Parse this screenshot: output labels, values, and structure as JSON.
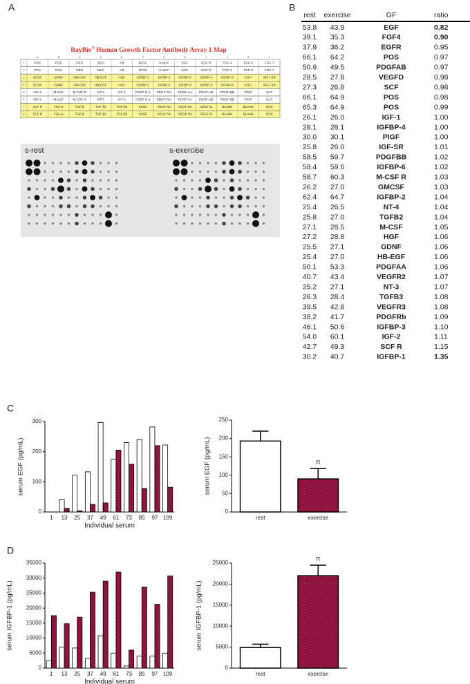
{
  "panels": [
    "A",
    "B",
    "C",
    "D"
  ],
  "array_map": {
    "title": [
      "RayBio",
      "®",
      " Human Growth Factor Antibody Array 1 Map"
    ],
    "columns": [
      "A",
      "B",
      "C",
      "D",
      "E",
      "F",
      "G",
      "H",
      "I",
      "J",
      "K",
      "L"
    ],
    "row_labels": [
      "1",
      "2",
      "3",
      "4",
      "5",
      "6",
      "7",
      "8"
    ],
    "rows": [
      [
        "POS",
        "POS",
        "NEG",
        "NEG",
        "AR",
        "bFGF",
        "b-NGF",
        "EGF",
        "EGF R",
        "FGF-4",
        "FGF-6",
        "FGF-7"
      ],
      [
        "POS",
        "POS",
        "NEG",
        "NEG",
        "AR",
        "bFGF",
        "b-NGF",
        "EGF",
        "EGF R",
        "FGF-4",
        "FGF-6",
        "FGF-7"
      ],
      [
        "GCSF",
        "GDNF",
        "GM-CSF",
        "HB-EGF",
        "HGF",
        "IGFBP-1",
        "IGFBP-2",
        "IGFBP-3",
        "IGFBP-4",
        "IGFBP-6",
        "IGF-I",
        "IGF-I SR"
      ],
      [
        "GCSF",
        "GDNF",
        "GM-CSF",
        "HB-EGF",
        "HGF",
        "IGFBP-1",
        "IGFBP-2",
        "IGFBP-3",
        "IGFBP-4",
        "IGFBP-6",
        "IGF-I",
        "IGF-I SR"
      ],
      [
        "IGF-II",
        "M-CSF",
        "M-CSF R",
        "NT-3",
        "NT-4",
        "PDGF R a",
        "PDGF R b",
        "PDGF-AA",
        "PDGF-AB",
        "PDGF-BB",
        "PIGF",
        "SCF"
      ],
      [
        "IGF-II",
        "M-CSF",
        "M-CSF R",
        "NT-3",
        "NT-4",
        "PDGF R a",
        "PDGF R b",
        "PDGF-AA",
        "PDGF-AB",
        "PDGF-BB",
        "PIGF",
        "SCF"
      ],
      [
        "SCF R",
        "TGF-α",
        "TGF-β",
        "TGF-β2",
        "TGF-β3",
        "VEGF",
        "VEGF R2",
        "VEGF R3",
        "VEGF-D",
        "BLANK",
        "BLANK",
        "POS"
      ],
      [
        "SCF R",
        "TGF-α",
        "TGF-β",
        "TGF-β2",
        "TGF-β3",
        "VEGF",
        "VEGF R2",
        "VEGF R3",
        "VEGF-D",
        "BLANK",
        "BLANK",
        "POS"
      ]
    ]
  },
  "blots": [
    "s-rest",
    "s-exercise"
  ],
  "table": {
    "columns": [
      "rest",
      "exercise",
      "GF",
      "ratio"
    ],
    "rows": [
      [
        "53.8",
        "43.9",
        "EGF",
        "0.82"
      ],
      [
        "39.1",
        "35.3",
        "FGF4",
        "0.90"
      ],
      [
        "37.9",
        "36.2",
        "EGFR",
        "0.95"
      ],
      [
        "66.1",
        "64.2",
        "POS",
        "0.97"
      ],
      [
        "50.9",
        "49.5",
        "PDGFAB",
        "0.97"
      ],
      [
        "28.5",
        "27.8",
        "VEGFD",
        "0.98"
      ],
      [
        "27.3",
        "26.8",
        "SCF",
        "0.98"
      ],
      [
        "66.1",
        "64.9",
        "POS",
        "0.98"
      ],
      [
        "65.3",
        "64.9",
        "POS",
        "0.99"
      ],
      [
        "26.1",
        "26.0",
        "IGF-1",
        "1.00"
      ],
      [
        "28.1",
        "28.1",
        "IGFBP-4",
        "1.00"
      ],
      [
        "30.0",
        "30.1",
        "PIGF",
        "1.00"
      ],
      [
        "25.8",
        "26.0",
        "IGF-SR",
        "1.01"
      ],
      [
        "58.5",
        "59.7",
        "PDGFBB",
        "1.02"
      ],
      [
        "58.4",
        "59.6",
        "IGFBP-6",
        "1.02"
      ],
      [
        "58.7",
        "60.3",
        "M-CSF R",
        "1.03"
      ],
      [
        "26.2",
        "27.0",
        "GMCSF",
        "1.03"
      ],
      [
        "62.4",
        "64.7",
        "IGFBP-2",
        "1.04"
      ],
      [
        "25.4",
        "26.5",
        "NT-4",
        "1.04"
      ],
      [
        "25.8",
        "27.0",
        "TGFB2",
        "1.04"
      ],
      [
        "27.1",
        "28.5",
        "M-CSF",
        "1.05"
      ],
      [
        "27.2",
        "28.8",
        "HGF",
        "1.06"
      ],
      [
        "25.5",
        "27.1",
        "GDNF",
        "1.06"
      ],
      [
        "25.4",
        "27.0",
        "HB-EGF",
        "1.06"
      ],
      [
        "50.1",
        "53.3",
        "PDGFAA",
        "1.06"
      ],
      [
        "40.7",
        "43.4",
        "VEGFR2",
        "1.07"
      ],
      [
        "25.2",
        "27.1",
        "NT-3",
        "1.07"
      ],
      [
        "26.3",
        "28.4",
        "TGFB3",
        "1.08"
      ],
      [
        "39.5",
        "42.8",
        "VEGFR3",
        "1.08"
      ],
      [
        "38.2",
        "41.7",
        "PDGFRb",
        "1.09"
      ],
      [
        "46.1",
        "50.6",
        "IGFBP-3",
        "1.10"
      ],
      [
        "54.0",
        "60.1",
        "IGF-2",
        "1.11"
      ],
      [
        "42.7",
        "49.3",
        "SCF R",
        "1.15"
      ],
      [
        "30.2",
        "40.7",
        "IGFBP-1",
        "1.35"
      ]
    ]
  },
  "chart_data": [
    {
      "type": "grouped-bar",
      "y_label": "serum EGF (pg/mL)",
      "x_label": "Individual serum",
      "categories": [
        "1",
        "13",
        "25",
        "37",
        "49",
        "61",
        "73",
        "85",
        "97",
        "109"
      ],
      "series": [
        {
          "color": "#ffffff",
          "values": [
            0,
            42,
            122,
            133,
            297,
            175,
            230,
            240,
            282,
            222
          ]
        },
        {
          "color": "#b3174f",
          "pattern": "checkered",
          "values": [
            0,
            12,
            4,
            25,
            30,
            205,
            158,
            78,
            220,
            82
          ]
        }
      ],
      "ylim": [
        0,
        300
      ],
      "yticks": [
        0,
        100,
        200,
        300
      ]
    },
    {
      "type": "bar",
      "y_label": "serum EGF (pg/mL)",
      "categories": [
        "rest",
        "exercise"
      ],
      "values": [
        193,
        90
      ],
      "errors": [
        27,
        28
      ],
      "colors": [
        "#ffffff",
        "#b3174f"
      ],
      "patterns": [
        null,
        "checkered"
      ],
      "marker_labels": [
        null,
        "π"
      ],
      "ylim": [
        0,
        250
      ],
      "yticks": [
        0,
        50,
        100,
        150,
        200,
        250
      ]
    },
    {
      "type": "grouped-bar",
      "y_label": "serum IGFBP-1 (pg/mL)",
      "x_label": "Individual serum",
      "categories": [
        "1",
        "13",
        "25",
        "37",
        "49",
        "61",
        "73",
        "85",
        "97",
        "109"
      ],
      "series": [
        {
          "color": "#ffffff",
          "values": [
            2500,
            7000,
            6700,
            3200,
            10800,
            5000,
            700,
            4000,
            4000,
            5000
          ]
        },
        {
          "color": "#b3174f",
          "pattern": "checkered",
          "values": [
            17500,
            14800,
            17000,
            25300,
            29000,
            32000,
            6000,
            27000,
            21300,
            30700
          ]
        }
      ],
      "ylim": [
        0,
        35000
      ],
      "yticks": [
        0,
        5000,
        10000,
        15000,
        20000,
        25000,
        30000,
        35000
      ]
    },
    {
      "type": "bar",
      "y_label": "serum IGFBP-1 (pg/mL)",
      "categories": [
        "rest",
        "exercise"
      ],
      "values": [
        4900,
        22000
      ],
      "errors": [
        800,
        2500
      ],
      "colors": [
        "#ffffff",
        "#b3174f"
      ],
      "patterns": [
        null,
        "checkered"
      ],
      "marker_labels": [
        null,
        "π"
      ],
      "ylim": [
        0,
        25000
      ],
      "yticks": [
        0,
        5000,
        10000,
        15000,
        20000,
        25000
      ]
    }
  ]
}
